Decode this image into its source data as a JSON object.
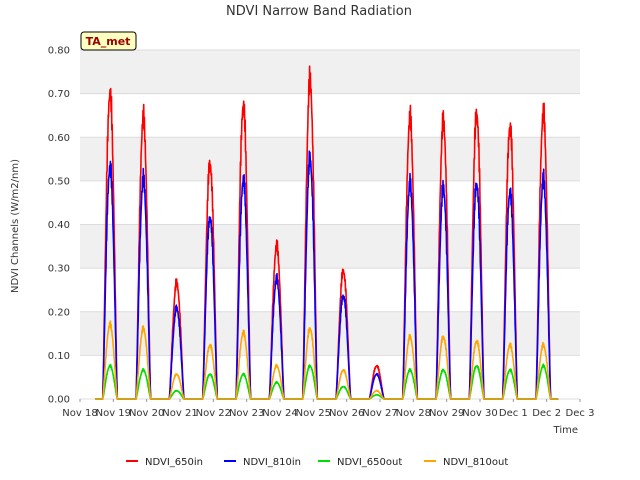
{
  "chart_data": {
    "type": "line",
    "title": "NDVI Narrow Band Radiation",
    "xlabel": "Time",
    "ylabel": "NDVI Channels (W/m2/nm)",
    "ylim": [
      0,
      0.8
    ],
    "xlim": [
      18,
      33
    ],
    "grid": true,
    "legend": "bottom",
    "badge": "TA_met",
    "yticks": [
      0.0,
      0.1,
      0.2,
      0.3,
      0.4,
      0.5,
      0.6,
      0.7,
      0.8
    ],
    "ytick_labels": [
      "0.00",
      "0.10",
      "0.20",
      "0.30",
      "0.40",
      "0.50",
      "0.60",
      "0.70",
      "0.80"
    ],
    "xticks": [
      18,
      19,
      20,
      21,
      22,
      23,
      24,
      25,
      26,
      27,
      28,
      29,
      30,
      31,
      32,
      33
    ],
    "xtick_labels": [
      "Nov 18",
      "Nov 19",
      "Nov 20",
      "Nov 21",
      "Nov 22",
      "Nov 23",
      "Nov 24",
      "Nov 25",
      "Nov 26",
      "Nov 27",
      "Nov 28",
      "Nov 29",
      "Nov 30",
      "Dec 1",
      "Dec 2",
      "Dec 3"
    ],
    "days": [
      18.9,
      19.9,
      20.9,
      21.9,
      22.9,
      23.9,
      24.9,
      25.9,
      26.9,
      27.9,
      28.9,
      29.9,
      30.9,
      31.9
    ],
    "series": [
      {
        "name": "NDVI_650in",
        "color": "#ff0000",
        "peaks": [
          0.74,
          0.68,
          0.28,
          0.57,
          0.71,
          0.37,
          0.77,
          0.31,
          0.08,
          0.68,
          0.67,
          0.69,
          0.66,
          0.69
        ]
      },
      {
        "name": "NDVI_810in",
        "color": "#0000ff",
        "peaks": [
          0.56,
          0.53,
          0.22,
          0.44,
          0.53,
          0.29,
          0.58,
          0.25,
          0.06,
          0.52,
          0.51,
          0.52,
          0.5,
          0.53
        ]
      },
      {
        "name": "NDVI_650out",
        "color": "#00dd00",
        "peaks": [
          0.08,
          0.07,
          0.02,
          0.06,
          0.06,
          0.04,
          0.08,
          0.03,
          0.01,
          0.07,
          0.07,
          0.08,
          0.07,
          0.08
        ]
      },
      {
        "name": "NDVI_810out",
        "color": "#ffa500",
        "peaks": [
          0.18,
          0.17,
          0.06,
          0.13,
          0.16,
          0.08,
          0.17,
          0.07,
          0.02,
          0.15,
          0.15,
          0.14,
          0.13,
          0.13
        ]
      }
    ]
  }
}
